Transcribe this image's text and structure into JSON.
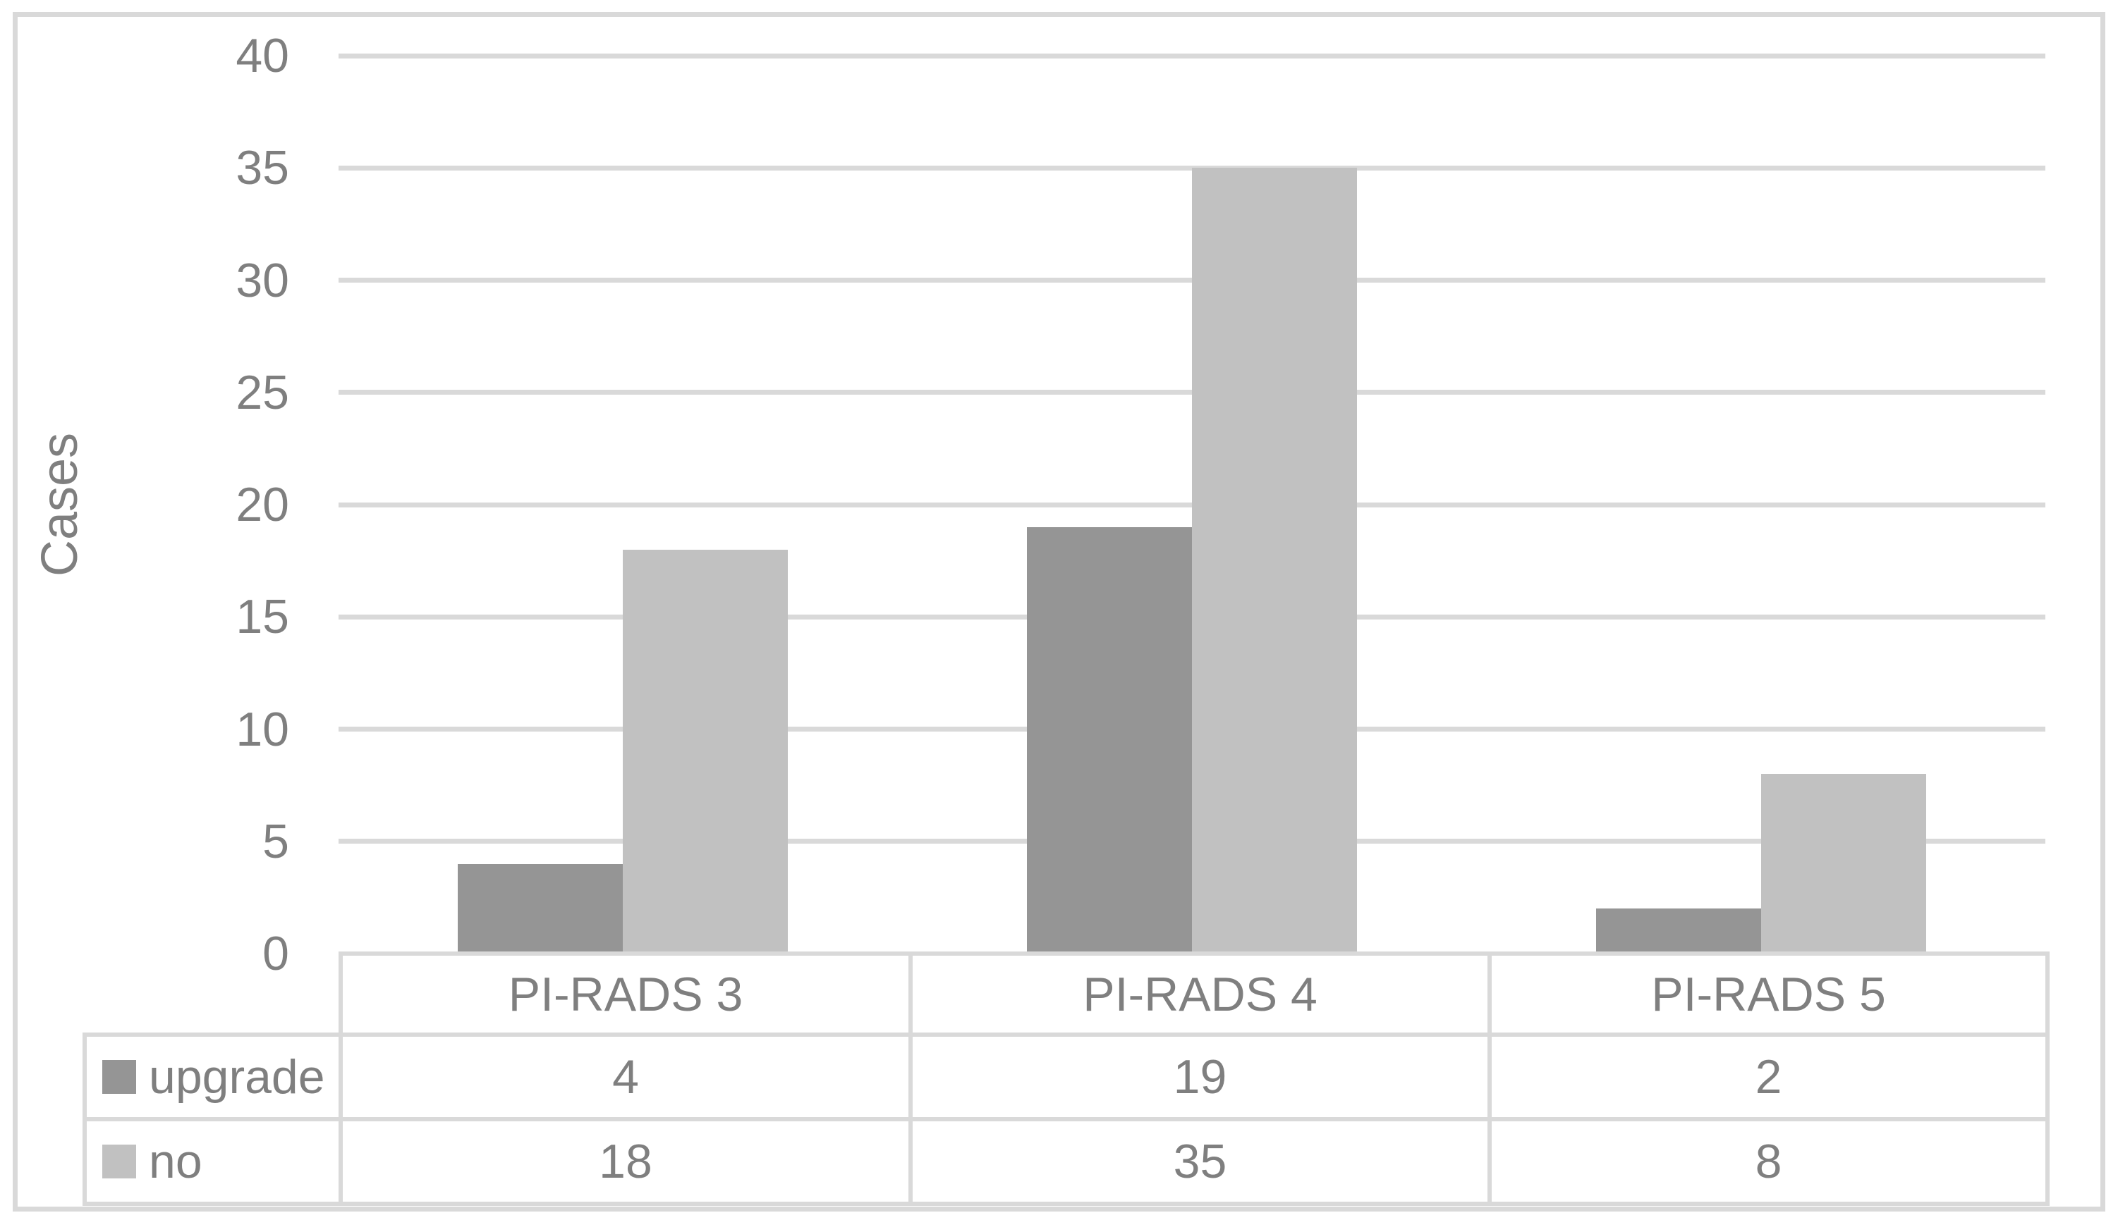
{
  "chart_data": {
    "type": "bar",
    "title": "",
    "xlabel": "",
    "ylabel": "Cases",
    "categories": [
      "PI-RADS 3",
      "PI-RADS 4",
      "PI-RADS 5"
    ],
    "series": [
      {
        "name": "upgrade",
        "color": "#959595",
        "values": [
          4,
          19,
          2
        ]
      },
      {
        "name": "no",
        "color": "#c1c1c1",
        "values": [
          18,
          35,
          8
        ]
      }
    ],
    "ylim": [
      0,
      40
    ],
    "yticks": [
      0,
      5,
      10,
      15,
      20,
      25,
      30,
      35,
      40
    ],
    "grid": true,
    "legend_position": "data-table-left",
    "data_table": true
  },
  "colors": {
    "grid": "#d9d9d9",
    "table_border": "#d9d9d9",
    "frame_border": "#d9d9d9",
    "text": "#7f7f7f",
    "background": "#ffffff"
  }
}
